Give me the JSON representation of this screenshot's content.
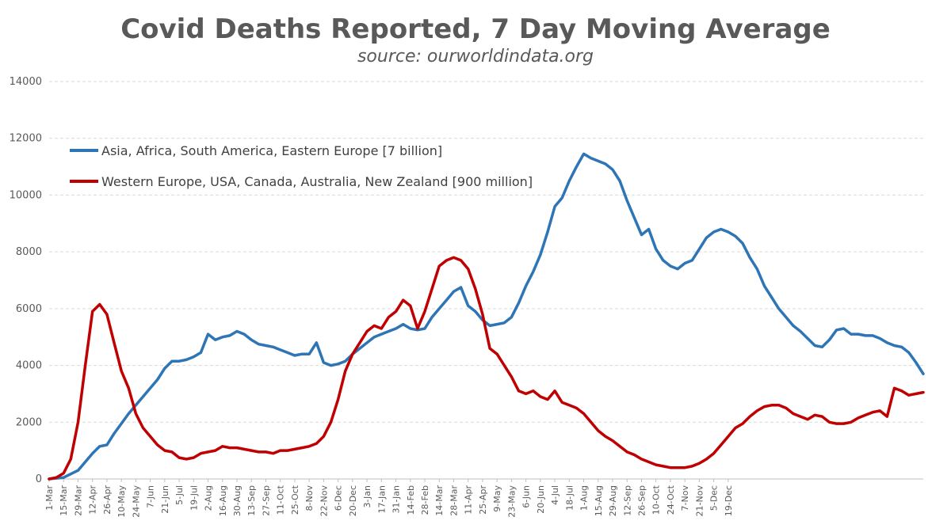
{
  "chart_data": {
    "type": "line",
    "title": "Covid Deaths Reported, 7 Day Moving Average",
    "subtitle": "source: ourworldindata.org",
    "ylim": [
      0,
      14000
    ],
    "yticks": [
      0,
      2000,
      4000,
      6000,
      8000,
      10000,
      12000,
      14000
    ],
    "grid": true,
    "legend_position": "top-left",
    "x_start": "1-Mar",
    "x_labels": [
      "1-Mar",
      "15-Mar",
      "29-Mar",
      "12-Apr",
      "26-Apr",
      "10-May",
      "24-May",
      "7-Jun",
      "21-Jun",
      "5-Jul",
      "19-Jul",
      "2-Aug",
      "16-Aug",
      "30-Aug",
      "13-Sep",
      "27-Sep",
      "11-Oct",
      "25-Oct",
      "8-Nov",
      "22-Nov",
      "6-Dec",
      "20-Dec",
      "3-Jan",
      "17-Jan",
      "31-Jan",
      "14-Feb",
      "28-Feb",
      "14-Mar",
      "28-Mar",
      "11-Apr",
      "25-Apr",
      "9-May",
      "23-May",
      "6-Jun",
      "20-Jun",
      "4-Jul",
      "18-Jul",
      "1-Aug",
      "15-Aug",
      "29-Aug",
      "12-Sep",
      "26-Sep",
      "10-Oct",
      "24-Oct",
      "7-Nov",
      "21-Nov",
      "5-Dec",
      "19-Dec"
    ],
    "series": [
      {
        "name": "Asia, Africa, South America, Eastern Europe [7 billion]",
        "color": "#2E75B6",
        "points": [
          [
            0,
            0
          ],
          [
            14,
            50
          ],
          [
            28,
            300
          ],
          [
            42,
            900
          ],
          [
            49,
            1150
          ],
          [
            56,
            1200
          ],
          [
            63,
            1600
          ],
          [
            77,
            2300
          ],
          [
            91,
            2900
          ],
          [
            98,
            3200
          ],
          [
            105,
            3500
          ],
          [
            112,
            3900
          ],
          [
            119,
            4150
          ],
          [
            126,
            4150
          ],
          [
            133,
            4200
          ],
          [
            140,
            4300
          ],
          [
            147,
            4450
          ],
          [
            154,
            5100
          ],
          [
            161,
            4900
          ],
          [
            168,
            5000
          ],
          [
            175,
            5050
          ],
          [
            182,
            5200
          ],
          [
            189,
            5100
          ],
          [
            196,
            4900
          ],
          [
            203,
            4750
          ],
          [
            210,
            4700
          ],
          [
            217,
            4650
          ],
          [
            224,
            4550
          ],
          [
            231,
            4450
          ],
          [
            238,
            4350
          ],
          [
            245,
            4400
          ],
          [
            252,
            4400
          ],
          [
            259,
            4800
          ],
          [
            266,
            4100
          ],
          [
            273,
            4000
          ],
          [
            280,
            4050
          ],
          [
            287,
            4150
          ],
          [
            294,
            4400
          ],
          [
            301,
            4600
          ],
          [
            308,
            4800
          ],
          [
            315,
            5000
          ],
          [
            322,
            5100
          ],
          [
            329,
            5200
          ],
          [
            336,
            5300
          ],
          [
            343,
            5450
          ],
          [
            350,
            5300
          ],
          [
            357,
            5250
          ],
          [
            364,
            5300
          ],
          [
            371,
            5700
          ],
          [
            378,
            6000
          ],
          [
            385,
            6300
          ],
          [
            392,
            6600
          ],
          [
            399,
            6750
          ],
          [
            406,
            6100
          ],
          [
            413,
            5900
          ],
          [
            420,
            5600
          ],
          [
            427,
            5400
          ],
          [
            434,
            5450
          ],
          [
            441,
            5500
          ],
          [
            448,
            5700
          ],
          [
            455,
            6200
          ],
          [
            462,
            6800
          ],
          [
            469,
            7300
          ],
          [
            476,
            7900
          ],
          [
            483,
            8700
          ],
          [
            490,
            9600
          ],
          [
            497,
            9900
          ],
          [
            504,
            10500
          ],
          [
            511,
            11000
          ],
          [
            518,
            11450
          ],
          [
            525,
            11300
          ],
          [
            532,
            11200
          ],
          [
            539,
            11100
          ],
          [
            546,
            10900
          ],
          [
            553,
            10500
          ],
          [
            560,
            9800
          ],
          [
            567,
            9200
          ],
          [
            574,
            8600
          ],
          [
            581,
            8800
          ],
          [
            588,
            8100
          ],
          [
            595,
            7700
          ],
          [
            602,
            7500
          ],
          [
            609,
            7400
          ],
          [
            616,
            7600
          ],
          [
            623,
            7700
          ],
          [
            630,
            8100
          ],
          [
            637,
            8500
          ],
          [
            644,
            8700
          ],
          [
            651,
            8800
          ],
          [
            658,
            8700
          ],
          [
            665,
            8550
          ],
          [
            672,
            8300
          ],
          [
            679,
            7800
          ],
          [
            686,
            7400
          ],
          [
            693,
            6800
          ],
          [
            700,
            6400
          ],
          [
            707,
            6000
          ],
          [
            714,
            5700
          ],
          [
            721,
            5400
          ],
          [
            728,
            5200
          ],
          [
            735,
            4950
          ],
          [
            742,
            4700
          ],
          [
            749,
            4650
          ],
          [
            756,
            4900
          ],
          [
            763,
            5250
          ],
          [
            770,
            5300
          ],
          [
            777,
            5100
          ],
          [
            784,
            5100
          ],
          [
            791,
            5050
          ],
          [
            798,
            5050
          ],
          [
            805,
            4950
          ],
          [
            812,
            4800
          ],
          [
            819,
            4700
          ],
          [
            826,
            4650
          ],
          [
            833,
            4450
          ],
          [
            840,
            4100
          ],
          [
            847,
            3700
          ]
        ]
      },
      {
        "name": "Western Europe, USA, Canada, Australia, New Zealand [900 million]",
        "color": "#C00000",
        "points": [
          [
            0,
            0
          ],
          [
            7,
            50
          ],
          [
            14,
            200
          ],
          [
            21,
            700
          ],
          [
            28,
            2000
          ],
          [
            35,
            4000
          ],
          [
            42,
            5900
          ],
          [
            49,
            6150
          ],
          [
            56,
            5800
          ],
          [
            63,
            4800
          ],
          [
            70,
            3800
          ],
          [
            77,
            3200
          ],
          [
            84,
            2300
          ],
          [
            91,
            1800
          ],
          [
            98,
            1500
          ],
          [
            105,
            1200
          ],
          [
            112,
            1000
          ],
          [
            119,
            950
          ],
          [
            126,
            750
          ],
          [
            133,
            700
          ],
          [
            140,
            750
          ],
          [
            147,
            900
          ],
          [
            154,
            950
          ],
          [
            161,
            1000
          ],
          [
            168,
            1150
          ],
          [
            175,
            1100
          ],
          [
            182,
            1100
          ],
          [
            189,
            1050
          ],
          [
            196,
            1000
          ],
          [
            203,
            950
          ],
          [
            210,
            950
          ],
          [
            217,
            900
          ],
          [
            224,
            1000
          ],
          [
            231,
            1000
          ],
          [
            238,
            1050
          ],
          [
            245,
            1100
          ],
          [
            252,
            1150
          ],
          [
            259,
            1250
          ],
          [
            266,
            1500
          ],
          [
            273,
            2000
          ],
          [
            280,
            2800
          ],
          [
            287,
            3800
          ],
          [
            294,
            4400
          ],
          [
            301,
            4800
          ],
          [
            308,
            5200
          ],
          [
            315,
            5400
          ],
          [
            322,
            5300
          ],
          [
            329,
            5700
          ],
          [
            336,
            5900
          ],
          [
            343,
            6300
          ],
          [
            350,
            6100
          ],
          [
            357,
            5300
          ],
          [
            364,
            5900
          ],
          [
            371,
            6700
          ],
          [
            378,
            7500
          ],
          [
            385,
            7700
          ],
          [
            392,
            7800
          ],
          [
            399,
            7700
          ],
          [
            406,
            7400
          ],
          [
            413,
            6700
          ],
          [
            420,
            5800
          ],
          [
            427,
            4600
          ],
          [
            434,
            4400
          ],
          [
            441,
            4000
          ],
          [
            448,
            3600
          ],
          [
            455,
            3100
          ],
          [
            462,
            3000
          ],
          [
            469,
            3100
          ],
          [
            476,
            2900
          ],
          [
            483,
            2800
          ],
          [
            490,
            3100
          ],
          [
            497,
            2700
          ],
          [
            504,
            2600
          ],
          [
            511,
            2500
          ],
          [
            518,
            2300
          ],
          [
            525,
            2000
          ],
          [
            532,
            1700
          ],
          [
            539,
            1500
          ],
          [
            546,
            1350
          ],
          [
            553,
            1150
          ],
          [
            560,
            950
          ],
          [
            567,
            850
          ],
          [
            574,
            700
          ],
          [
            581,
            600
          ],
          [
            588,
            500
          ],
          [
            595,
            450
          ],
          [
            602,
            400
          ],
          [
            609,
            400
          ],
          [
            616,
            400
          ],
          [
            623,
            450
          ],
          [
            630,
            550
          ],
          [
            637,
            700
          ],
          [
            644,
            900
          ],
          [
            651,
            1200
          ],
          [
            658,
            1500
          ],
          [
            665,
            1800
          ],
          [
            672,
            1950
          ],
          [
            679,
            2200
          ],
          [
            686,
            2400
          ],
          [
            693,
            2550
          ],
          [
            700,
            2600
          ],
          [
            707,
            2600
          ],
          [
            714,
            2500
          ],
          [
            721,
            2300
          ],
          [
            728,
            2200
          ],
          [
            735,
            2100
          ],
          [
            742,
            2250
          ],
          [
            749,
            2200
          ],
          [
            756,
            2000
          ],
          [
            763,
            1950
          ],
          [
            770,
            1950
          ],
          [
            777,
            2000
          ],
          [
            784,
            2150
          ],
          [
            791,
            2250
          ],
          [
            798,
            2350
          ],
          [
            805,
            2400
          ],
          [
            812,
            2200
          ],
          [
            819,
            3200
          ],
          [
            826,
            3100
          ],
          [
            833,
            2950
          ],
          [
            840,
            3000
          ],
          [
            847,
            3050
          ]
        ]
      }
    ]
  }
}
